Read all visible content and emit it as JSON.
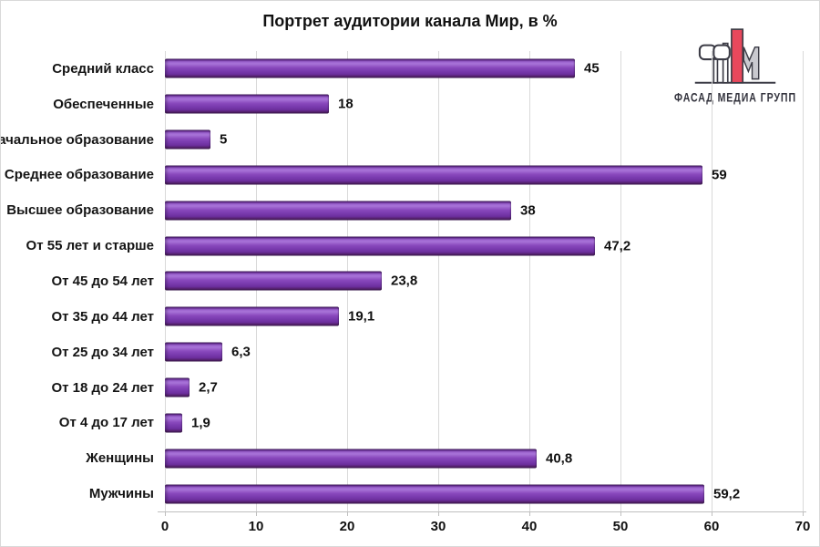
{
  "chart_data": {
    "type": "bar",
    "orientation": "horizontal",
    "title": "Портрет аудитории канала Мир, в %",
    "categories": [
      "Средний класс",
      "Обеспеченные",
      "Начальное образование",
      "Среднее образование",
      "Высшее образование",
      "От 55 лет и старше",
      "От 45 до 54 лет",
      "От 35 до 44 лет",
      "От 25 до 34 лет",
      "От 18 до 24 лет",
      "От 4 до 17 лет",
      "Женщины",
      "Мужчины"
    ],
    "values": [
      45,
      18,
      5,
      59,
      38,
      47.2,
      23.8,
      19.1,
      6.3,
      2.7,
      1.9,
      40.8,
      59.2
    ],
    "value_labels": [
      "45",
      "18",
      "5",
      "59",
      "38",
      "47,2",
      "23,8",
      "19,1",
      "6,3",
      "2,7",
      "1,9",
      "40,8",
      "59,2"
    ],
    "xlabel": "",
    "ylabel": "",
    "xlim": [
      0,
      70
    ],
    "x_ticks": [
      0,
      10,
      20,
      30,
      40,
      50,
      60,
      70
    ],
    "grid": true,
    "legend": "none"
  },
  "logo": {
    "text": "ФАСАД МЕДИА ГРУПП"
  },
  "colors": {
    "bar_main": "#7B3CB0",
    "bar_highlight": "#A873D8",
    "bar_edge_dark": "#3F1A5C",
    "gridline": "#D9D9D9",
    "axis": "#BFBFBF",
    "text": "#111111",
    "background": "#FFFFFF",
    "frame": "#D9D9D9",
    "logo_red": "#E8485C",
    "logo_gray": "#C9C9CF",
    "logo_outline": "#3C3C46"
  }
}
